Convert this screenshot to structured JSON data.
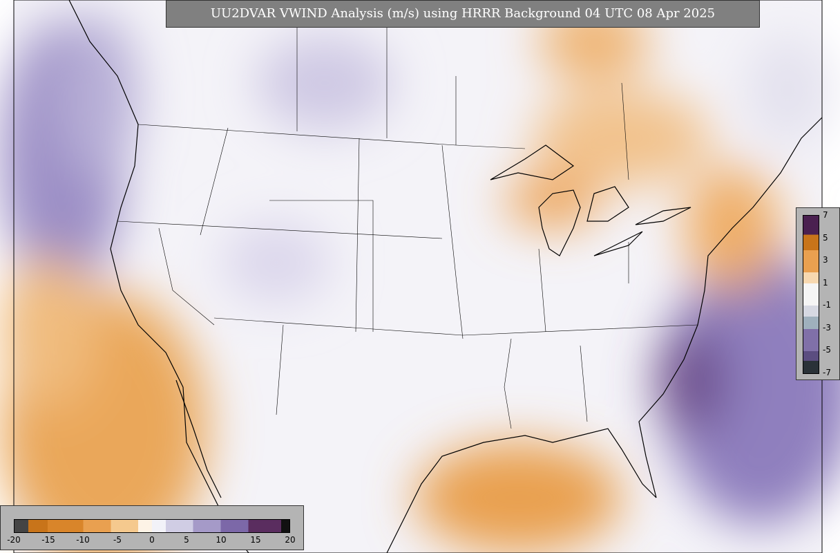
{
  "title": "UU2DVAR VWIND Analysis (m/s) using HRRR Background 04 UTC 08 Apr 2025",
  "colorbars": [
    {
      "ticks": [
        -20,
        -15,
        -10,
        -5,
        0,
        5,
        10,
        15,
        20
      ]
    },
    {
      "ticks": [
        7,
        5,
        3,
        1,
        -1,
        -3,
        -5,
        -7
      ]
    }
  ]
}
